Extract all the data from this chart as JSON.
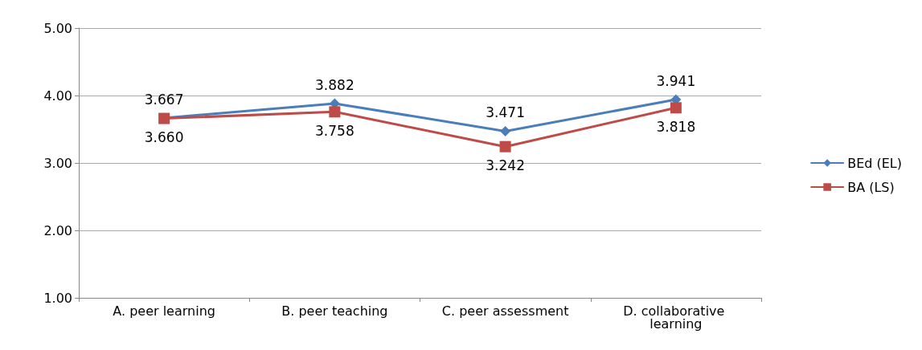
{
  "chart_data": {
    "type": "line",
    "categories": [
      "A. peer learning",
      "B. peer teaching",
      "C. peer assessment",
      "D. collaborative learning"
    ],
    "series": [
      {
        "name": "BEd (EL)",
        "color": "#4a7ebb",
        "marker": "diamond",
        "values": [
          3.667,
          3.882,
          3.471,
          3.941
        ],
        "value_labels": [
          "3.667",
          "3.882",
          "3.471",
          "3.941"
        ]
      },
      {
        "name": "BA (LS)",
        "color": "#be4b48",
        "marker": "square",
        "values": [
          3.66,
          3.758,
          3.242,
          3.818
        ],
        "value_labels": [
          "3.660",
          "3.758",
          "3.242",
          "3.818"
        ]
      }
    ],
    "ylim": [
      1,
      5
    ],
    "yticks": [
      {
        "value": 1,
        "label": "1.00"
      },
      {
        "value": 2,
        "label": "2.00"
      },
      {
        "value": 3,
        "label": "3.00"
      },
      {
        "value": 4,
        "label": "4.00"
      },
      {
        "value": 5,
        "label": "5.00"
      }
    ],
    "grid": "y",
    "legend": "right",
    "line_style": "solid"
  }
}
